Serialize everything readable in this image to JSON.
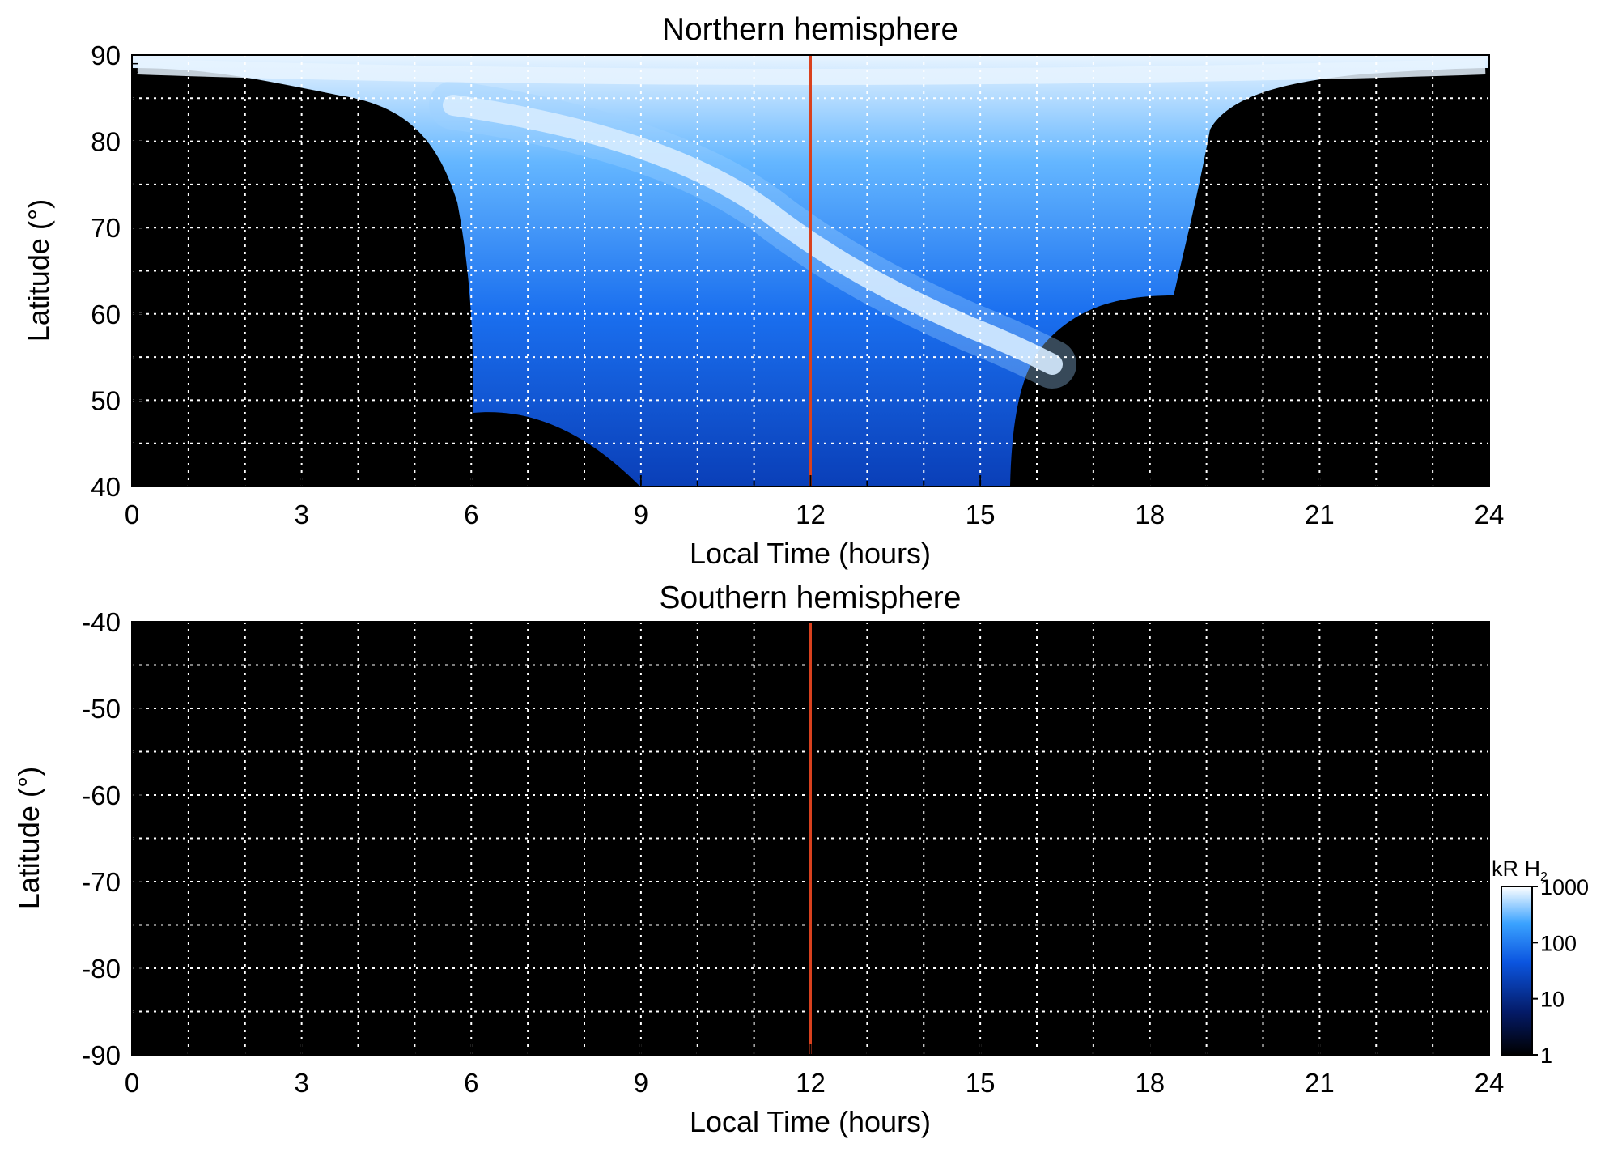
{
  "chart_data": [
    {
      "type": "heatmap",
      "title": "Northern hemisphere",
      "xlabel": "Local Time (hours)",
      "ylabel": "Latitude (°)",
      "xlim": [
        0,
        24
      ],
      "ylim": [
        40,
        90
      ],
      "xticks": [
        "0",
        "3",
        "6",
        "9",
        "12",
        "15",
        "18",
        "21",
        "24"
      ],
      "yticks": [
        "90",
        "80",
        "70",
        "60",
        "50",
        "40"
      ],
      "grid": true,
      "marker_line_x": 12,
      "description_of_coverage": "blue auroral emission band from ~85° near 9 LT curving down to ~52° near 16 LT; black (no data) regions at left and right"
    },
    {
      "type": "heatmap",
      "title": "Southern hemisphere",
      "xlabel": "Local Time (hours)",
      "ylabel": "Latitude (°)",
      "xlim": [
        0,
        24
      ],
      "ylim": [
        -90,
        -40
      ],
      "xticks": [
        "0",
        "3",
        "6",
        "9",
        "12",
        "15",
        "18",
        "21",
        "24"
      ],
      "yticks": [
        "-40",
        "-50",
        "-60",
        "-70",
        "-80",
        "-90"
      ],
      "grid": true,
      "marker_line_x": 12
    }
  ],
  "colorbar": {
    "label": "kR H",
    "label_sub": "2",
    "scale": "log",
    "ticks": [
      "1000",
      "100",
      "10",
      "1"
    ],
    "tick_values": [
      1000,
      100,
      10,
      1
    ]
  },
  "colors": {
    "marker_line": "#d9411e",
    "no_data": "#000000",
    "cmap_low": "#000000",
    "cmap_mid": "#0a4fd6",
    "cmap_high": "#ffffff"
  }
}
